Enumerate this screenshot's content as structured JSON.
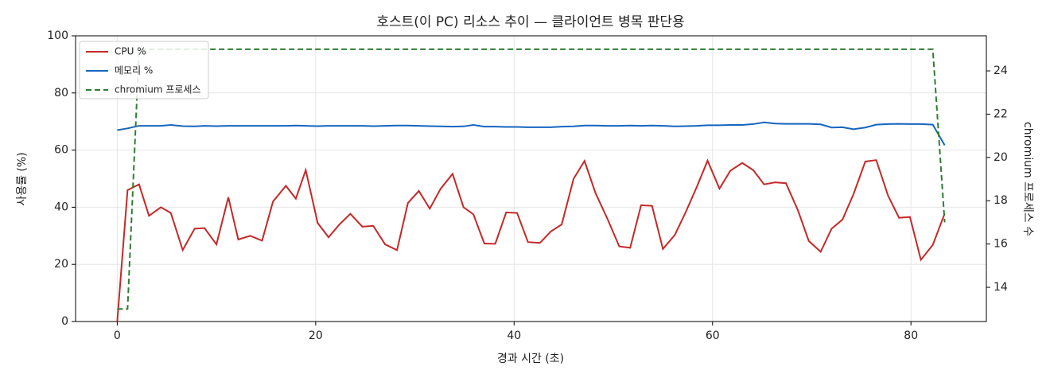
{
  "chart_data": {
    "type": "line",
    "title": "호스트(이 PC) 리소스 추이 — 클라이언트 병목 판단용",
    "xlabel": "경과 시간 (초)",
    "ylabel": "사용률 (%)",
    "y2label": "chromium 프로세스 수",
    "x": [
      0,
      1.04,
      2.2,
      3.2,
      4.4,
      5.4,
      6.6,
      7.8,
      8.8,
      10,
      11.2,
      12.2,
      13.4,
      14.6,
      15.7,
      17,
      18,
      19,
      20.2,
      21.3,
      22.4,
      23.5,
      24.7,
      25.8,
      27,
      28.2,
      29.3,
      30.4,
      31.5,
      32.6,
      33.8,
      34.9,
      35.9,
      37,
      38.1,
      39.2,
      40.3,
      41.4,
      42.6,
      43.7,
      44.8,
      46,
      47.1,
      48.2,
      49.4,
      50.6,
      51.7,
      52.8,
      53.9,
      55,
      56.2,
      57.3,
      58.4,
      59.5,
      60.7,
      61.8,
      63,
      64.1,
      65.2,
      66.3,
      67.4,
      68.6,
      69.7,
      70.9,
      72,
      73.1,
      74.2,
      75.4,
      76.5,
      77.7,
      78.8,
      79.9,
      81,
      82.2,
      83.4
    ],
    "series": [
      {
        "name": "CPU %",
        "color": "#c62828",
        "dashed": false,
        "values": [
          0,
          46,
          48,
          37,
          40,
          38,
          25,
          32.5,
          32.7,
          27,
          43.5,
          28.7,
          30,
          28.3,
          42,
          47.5,
          43,
          53,
          34.5,
          29.5,
          34,
          37.7,
          33.2,
          33.5,
          27,
          25,
          41.5,
          45.7,
          39.5,
          46.5,
          51.7,
          40,
          37.5,
          27.3,
          27.2,
          38.2,
          38,
          27.8,
          27.5,
          31.5,
          34,
          50,
          56.2,
          45,
          36,
          26.3,
          25.8,
          40.7,
          40.5,
          25.4,
          30.3,
          38.3,
          47,
          56.3,
          46.5,
          52.8,
          55.5,
          53,
          48,
          48.7,
          48.4,
          39,
          28.2,
          24.4,
          32.5,
          35.7,
          44.5,
          56,
          56.5,
          44,
          36.3,
          36.6,
          21.6,
          26.8,
          37.8
        ]
      },
      {
        "name": "메모리 %",
        "color": "#1565c0",
        "dashed": false,
        "values": [
          67.0,
          67.6,
          68.5,
          68.5,
          68.5,
          68.8,
          68.4,
          68.3,
          68.5,
          68.4,
          68.5,
          68.5,
          68.5,
          68.5,
          68.5,
          68.5,
          68.6,
          68.5,
          68.4,
          68.5,
          68.5,
          68.5,
          68.5,
          68.4,
          68.5,
          68.6,
          68.6,
          68.5,
          68.4,
          68.3,
          68.2,
          68.3,
          68.8,
          68.2,
          68.2,
          68.1,
          68.1,
          68.0,
          68.0,
          68.0,
          68.2,
          68.3,
          68.6,
          68.6,
          68.5,
          68.5,
          68.6,
          68.5,
          68.6,
          68.5,
          68.3,
          68.4,
          68.5,
          68.7,
          68.7,
          68.8,
          68.8,
          69.1,
          69.7,
          69.3,
          69.2,
          69.2,
          69.2,
          69.0,
          67.9,
          68.0,
          67.3,
          67.9,
          68.9,
          69.1,
          69.2,
          69.1,
          69.1,
          68.9,
          61.7
        ]
      },
      {
        "name": "chromium 프로세스",
        "color": "#2e7d32",
        "dashed": true,
        "axis": "y2",
        "values": [
          13,
          13,
          25,
          25,
          25,
          25,
          25,
          25,
          25,
          25,
          25,
          25,
          25,
          25,
          25,
          25,
          25,
          25,
          25,
          25,
          25,
          25,
          25,
          25,
          25,
          25,
          25,
          25,
          25,
          25,
          25,
          25,
          25,
          25,
          25,
          25,
          25,
          25,
          25,
          25,
          25,
          25,
          25,
          25,
          25,
          25,
          25,
          25,
          25,
          25,
          25,
          25,
          25,
          25,
          25,
          25,
          25,
          25,
          25,
          25,
          25,
          25,
          25,
          25,
          25,
          25,
          25,
          25,
          25,
          25,
          25,
          25,
          25,
          25,
          17
        ]
      }
    ],
    "xlim": [
      -4.2,
      87.6
    ],
    "xticks": [
      0,
      20,
      40,
      60,
      80
    ],
    "ylim": [
      0,
      100
    ],
    "yticks": [
      0,
      20,
      40,
      60,
      80,
      100
    ],
    "y2lim": [
      12.42,
      25.62
    ],
    "y2ticks": [
      14,
      16,
      18,
      20,
      22,
      24
    ],
    "grid": true,
    "legend": "upper-left"
  }
}
